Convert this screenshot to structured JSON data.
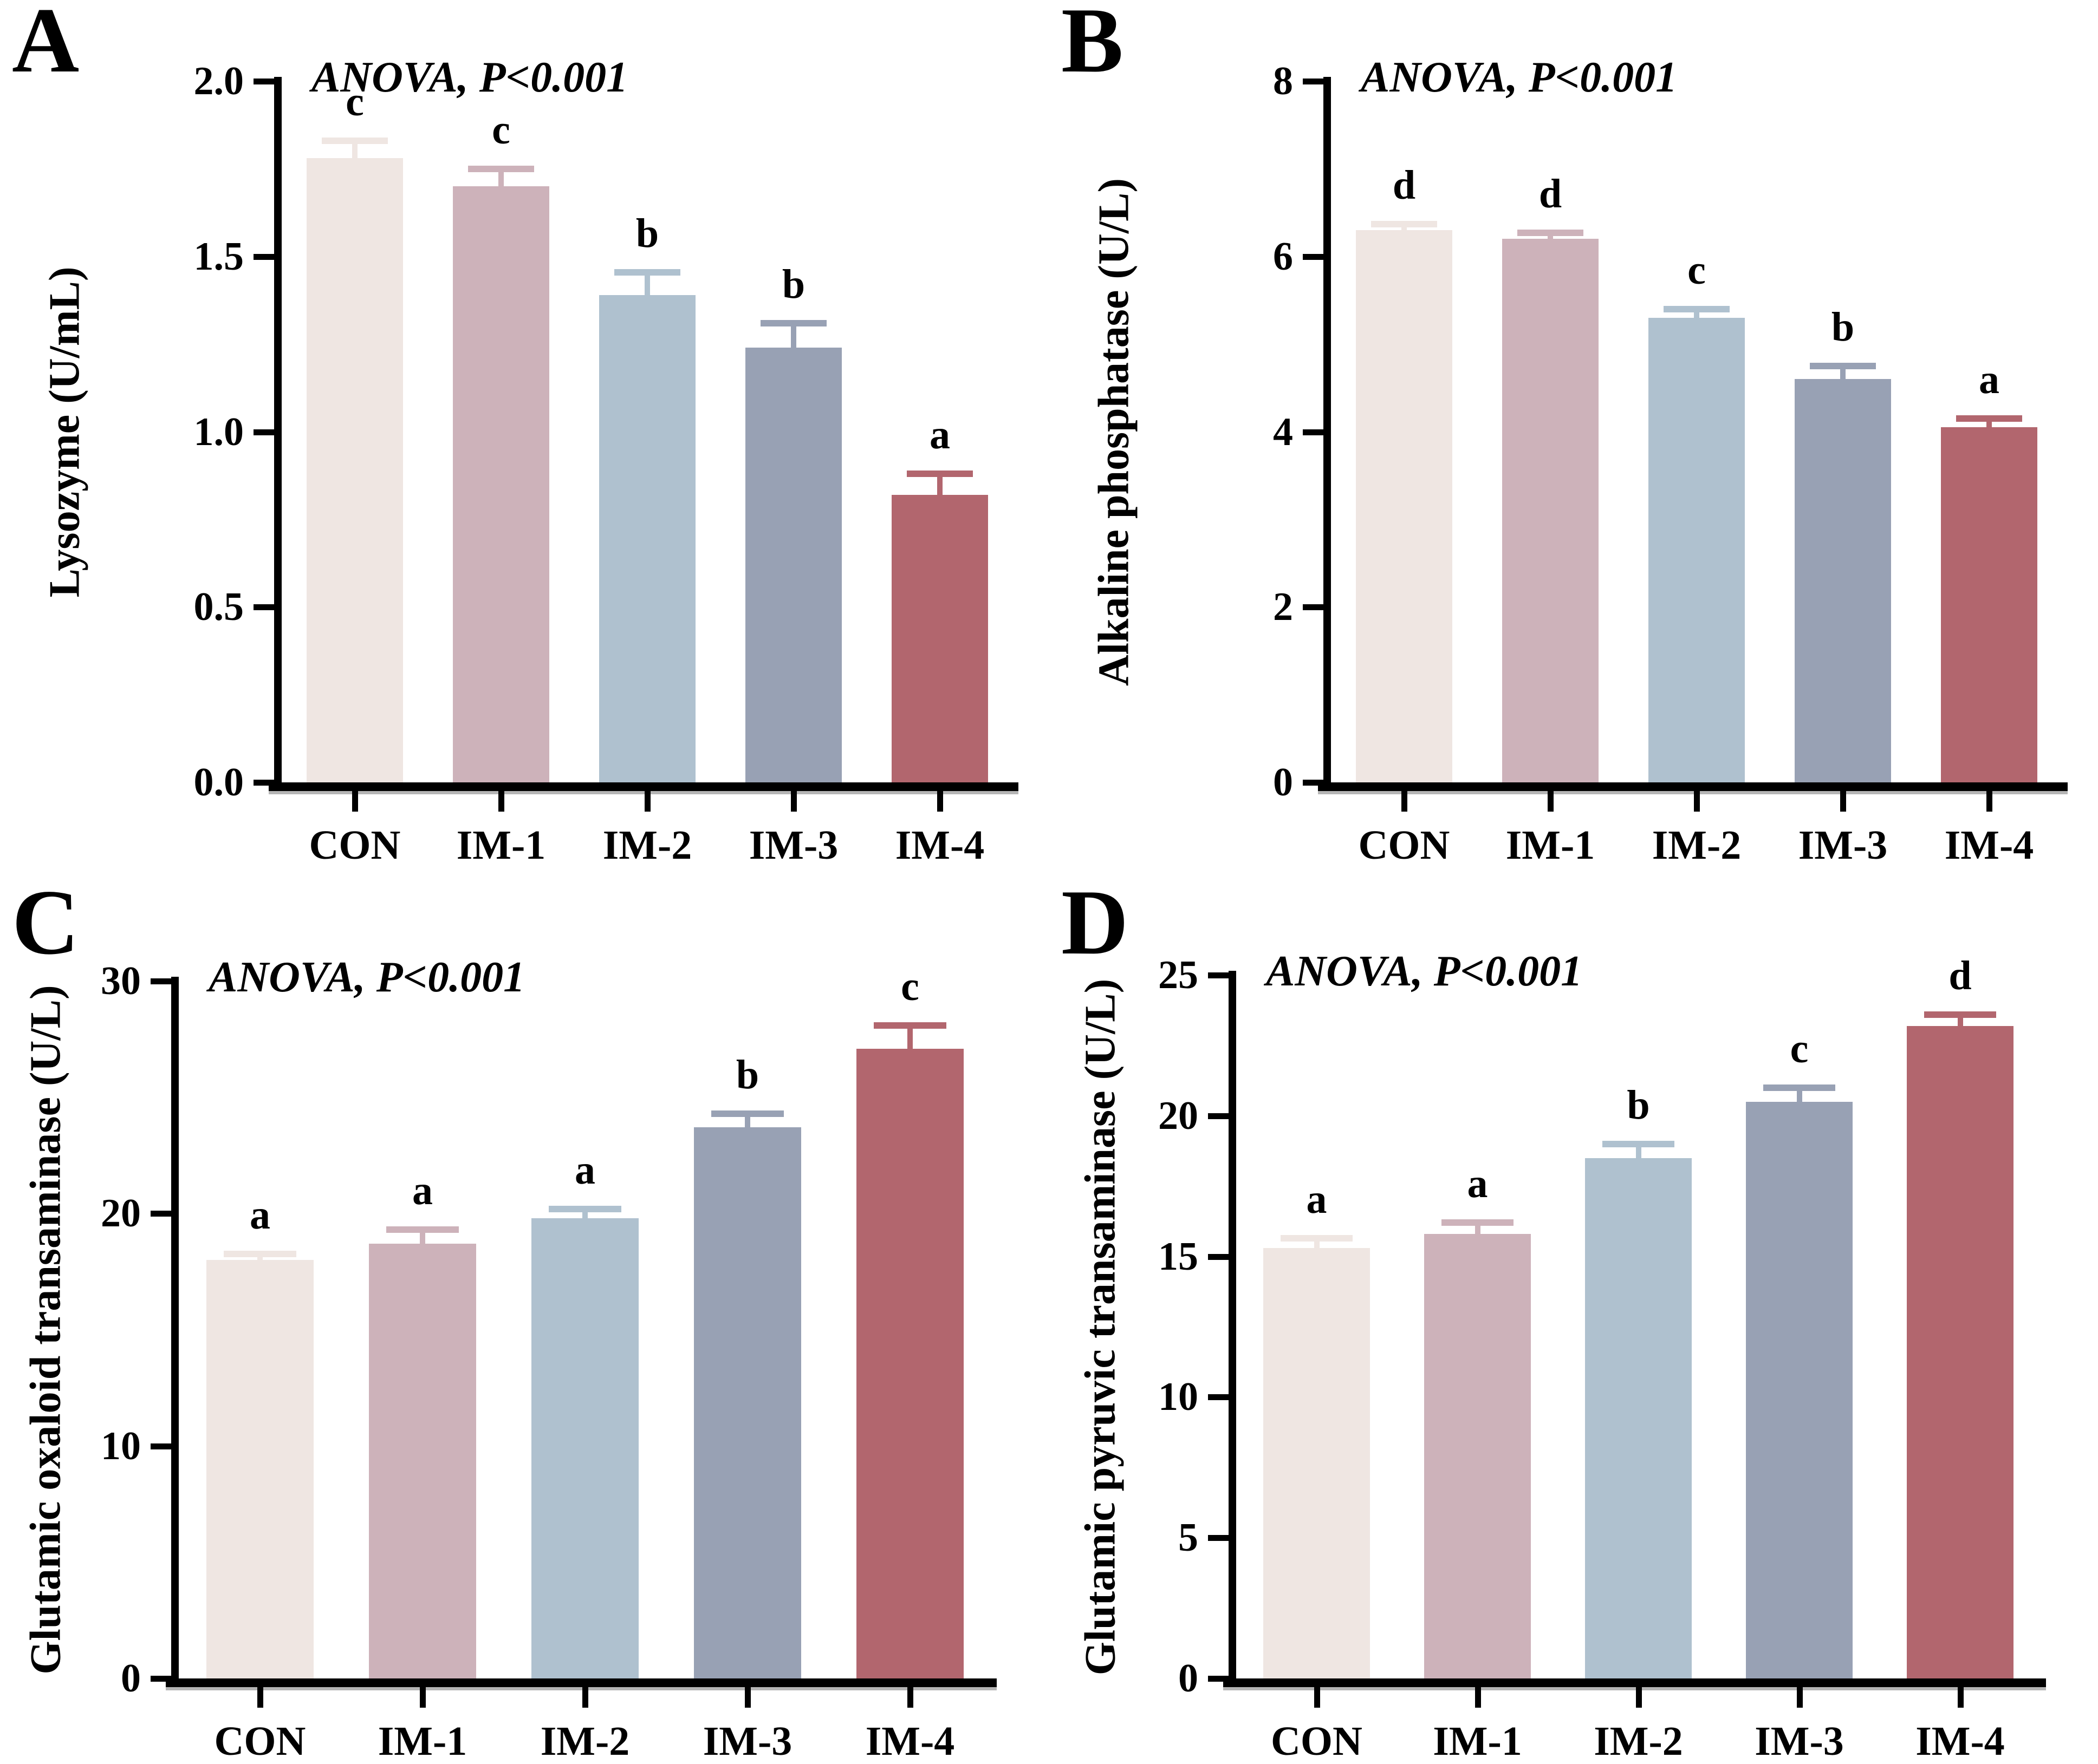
{
  "figure": {
    "background": "#ffffff",
    "text_color": "#000000",
    "annotation": "ANOVA, P<0.001",
    "categories": [
      "CON",
      "IM-1",
      "IM-2",
      "IM-3",
      "IM-4"
    ],
    "bar_colors": [
      "#EFE6E2",
      "#CDB2BA",
      "#AFC1CF",
      "#98A1B4",
      "#B2666E"
    ]
  },
  "chart_data": [
    {
      "type": "bar",
      "panel": "A",
      "title": "ANOVA, P<0.001",
      "ylabel": "Lysozyme (U/mL)",
      "xlabel": "",
      "categories": [
        "CON",
        "IM-1",
        "IM-2",
        "IM-3",
        "IM-4"
      ],
      "values": [
        1.78,
        1.7,
        1.39,
        1.24,
        0.82
      ],
      "errors": [
        0.05,
        0.05,
        0.065,
        0.07,
        0.06
      ],
      "letters": [
        "c",
        "c",
        "b",
        "b",
        "a"
      ],
      "bar_colors": [
        "#EFE6E2",
        "#CDB2BA",
        "#AFC1CF",
        "#98A1B4",
        "#B2666E"
      ],
      "ylim": [
        0,
        2.0
      ],
      "yticks": [
        0,
        0.5,
        1.0,
        1.5,
        2.0
      ],
      "ytick_labels": [
        "0.0",
        "0.5",
        "1.0",
        "1.5",
        "2.0"
      ],
      "grid": false,
      "legend": "none"
    },
    {
      "type": "bar",
      "panel": "B",
      "title": "ANOVA, P<0.001",
      "ylabel": "Alkaline phosphatase  (U/L)",
      "xlabel": "",
      "categories": [
        "CON",
        "IM-1",
        "IM-2",
        "IM-3",
        "IM-4"
      ],
      "values": [
        6.3,
        6.2,
        5.3,
        4.6,
        4.05
      ],
      "errors": [
        0.07,
        0.07,
        0.1,
        0.15,
        0.1
      ],
      "letters": [
        "d",
        "d",
        "c",
        "b",
        "a"
      ],
      "bar_colors": [
        "#EFE6E2",
        "#CDB2BA",
        "#AFC1CF",
        "#98A1B4",
        "#B2666E"
      ],
      "ylim": [
        0,
        8
      ],
      "yticks": [
        0,
        2,
        4,
        6,
        8
      ],
      "ytick_labels": [
        "0",
        "2",
        "4",
        "6",
        "8"
      ],
      "grid": false,
      "legend": "none"
    },
    {
      "type": "bar",
      "panel": "C",
      "title": "ANOVA, P<0.001",
      "ylabel": "Glutamic oxaloid transaminase (U/L)",
      "xlabel": "",
      "categories": [
        "CON",
        "IM-1",
        "IM-2",
        "IM-3",
        "IM-4"
      ],
      "values": [
        18.0,
        18.7,
        19.8,
        23.7,
        27.1
      ],
      "errors": [
        0.25,
        0.6,
        0.4,
        0.6,
        1.0
      ],
      "letters": [
        "a",
        "a",
        "a",
        "b",
        "c"
      ],
      "bar_colors": [
        "#EFE6E2",
        "#CDB2BA",
        "#AFC1CF",
        "#98A1B4",
        "#B2666E"
      ],
      "ylim": [
        0,
        30
      ],
      "yticks": [
        0,
        10,
        20,
        30
      ],
      "ytick_labels": [
        "0",
        "10",
        "20",
        "30"
      ],
      "grid": false,
      "legend": "none"
    },
    {
      "type": "bar",
      "panel": "D",
      "title": "ANOVA, P<0.001",
      "ylabel": "Glutamic pyruvic transaminase (U/L)",
      "xlabel": "",
      "categories": [
        "CON",
        "IM-1",
        "IM-2",
        "IM-3",
        "IM-4"
      ],
      "values": [
        15.3,
        15.8,
        18.5,
        20.5,
        23.2
      ],
      "errors": [
        0.35,
        0.4,
        0.5,
        0.5,
        0.4
      ],
      "letters": [
        "a",
        "a",
        "b",
        "c",
        "d"
      ],
      "bar_colors": [
        "#EFE6E2",
        "#CDB2BA",
        "#AFC1CF",
        "#98A1B4",
        "#B2666E"
      ],
      "ylim": [
        0,
        25
      ],
      "yticks": [
        0,
        5,
        10,
        15,
        20,
        25
      ],
      "ytick_labels": [
        "0",
        "5",
        "10",
        "15",
        "20",
        "25"
      ],
      "grid": false,
      "legend": "none"
    }
  ]
}
